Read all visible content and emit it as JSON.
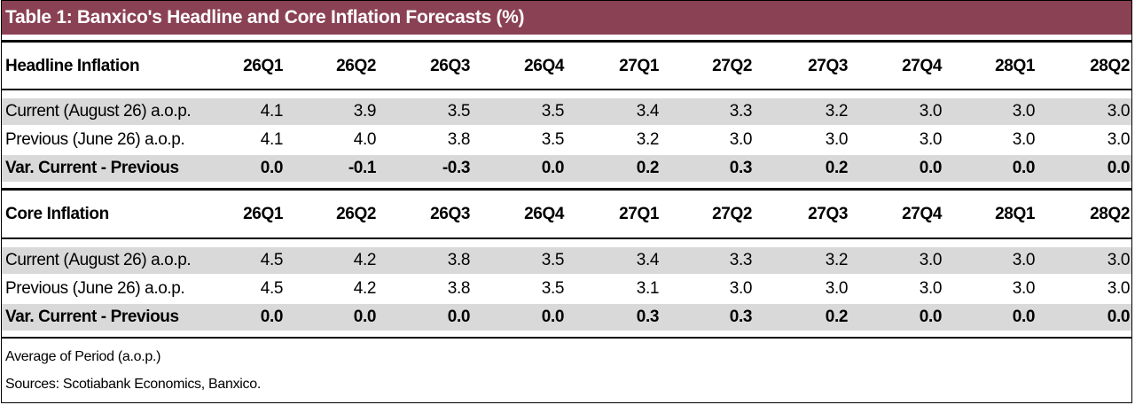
{
  "title": "Table 1: Banxico's Headline and Core Inflation Forecasts (%)",
  "columns": [
    "26Q1",
    "26Q2",
    "26Q3",
    "26Q4",
    "27Q1",
    "27Q2",
    "27Q3",
    "27Q4",
    "28Q1",
    "28Q2"
  ],
  "sections": [
    {
      "header": "Headline Inflation",
      "rows": [
        {
          "label": "Current (August 26) a.o.p.",
          "values": [
            "4.1",
            "3.9",
            "3.5",
            "3.5",
            "3.4",
            "3.3",
            "3.2",
            "3.0",
            "3.0",
            "3.0"
          ]
        },
        {
          "label": "Previous (June 26) a.o.p.",
          "values": [
            "4.1",
            "4.0",
            "3.8",
            "3.5",
            "3.2",
            "3.0",
            "3.0",
            "3.0",
            "3.0",
            "3.0"
          ]
        },
        {
          "label": "Var. Current - Previous",
          "values": [
            "0.0",
            "-0.1",
            "-0.3",
            "0.0",
            "0.2",
            "0.3",
            "0.2",
            "0.0",
            "0.0",
            "0.0"
          ]
        }
      ]
    },
    {
      "header": "Core Inflation",
      "rows": [
        {
          "label": "Current (August 26) a.o.p.",
          "values": [
            "4.5",
            "4.2",
            "3.8",
            "3.5",
            "3.4",
            "3.3",
            "3.2",
            "3.0",
            "3.0",
            "3.0"
          ]
        },
        {
          "label": "Previous (June 26) a.o.p.",
          "values": [
            "4.5",
            "4.2",
            "3.8",
            "3.5",
            "3.1",
            "3.0",
            "3.0",
            "3.0",
            "3.0",
            "3.0"
          ]
        },
        {
          "label": "Var. Current - Previous",
          "values": [
            "0.0",
            "0.0",
            "0.0",
            "0.0",
            "0.3",
            "0.3",
            "0.2",
            "0.0",
            "0.0",
            "0.0"
          ]
        }
      ]
    }
  ],
  "footnotes": [
    "Average of Period (a.o.p.)",
    "Sources: Scotiabank Economics, Banxico."
  ],
  "colors": {
    "title_bg": "#8a4153",
    "shade": "#d9d9d9"
  }
}
